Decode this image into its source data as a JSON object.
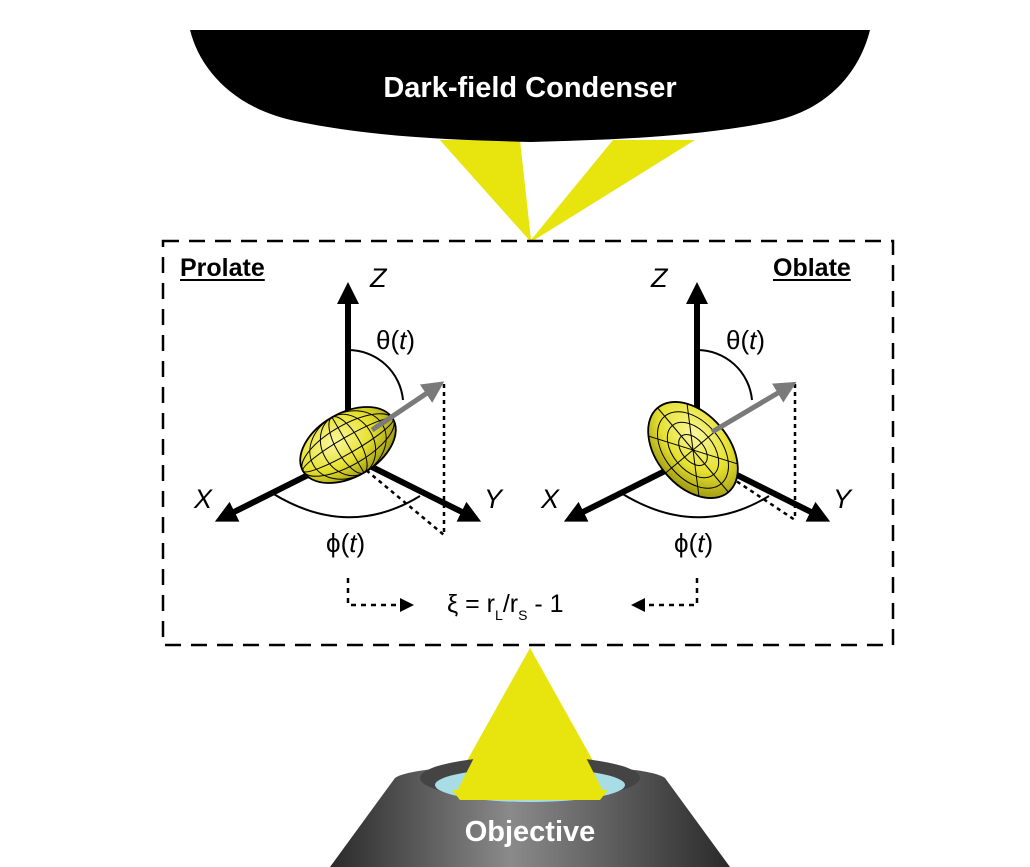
{
  "condenser": {
    "label": "Dark-field Condenser"
  },
  "objective": {
    "label": "Objective"
  },
  "prolate": {
    "title": "Prolate",
    "axis_z": "Z",
    "axis_x": "X",
    "axis_y": "Y",
    "theta": "θ",
    "phi": "ϕ",
    "time_var": "t"
  },
  "oblate": {
    "title": "Oblate",
    "axis_z": "Z",
    "axis_x": "X",
    "axis_y": "Y",
    "theta": "θ",
    "phi": "ϕ",
    "time_var": "t"
  },
  "equation": {
    "lhs": "ξ = r",
    "sub_l": "L",
    "slash": "/r",
    "sub_s": "S",
    "tail": " - 1"
  },
  "colors": {
    "light": "#e8e40e",
    "particle": "#e6e130",
    "orientation_arrow": "#7a7a7a",
    "condenser": "#000000",
    "objective_gray": "#5a5a5a",
    "lens": "#a8dde6"
  }
}
